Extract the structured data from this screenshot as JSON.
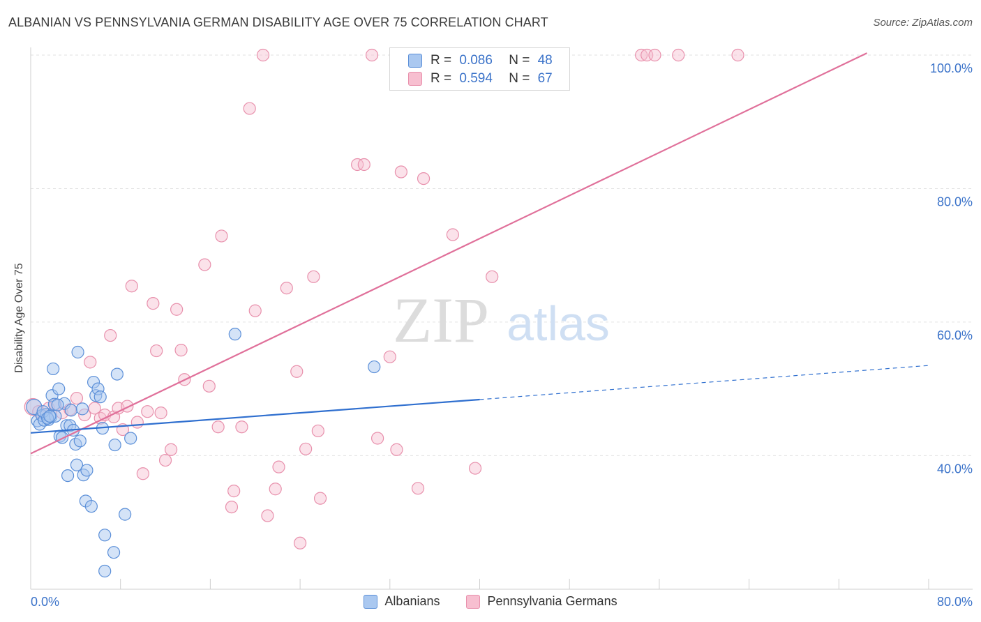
{
  "title": "ALBANIAN VS PENNSYLVANIA GERMAN DISABILITY AGE OVER 75 CORRELATION CHART",
  "source": "Source: ZipAtlas.com",
  "watermark": {
    "zip": "ZIP",
    "atlas": "atlas"
  },
  "colors": {
    "blue_fill": "#aac8f0",
    "blue_stroke": "#5b8fd8",
    "blue_line": "#2f6fcf",
    "pink_fill": "#f7bfd0",
    "pink_stroke": "#e890ac",
    "pink_line": "#e0709a",
    "value_text": "#3a72c9"
  },
  "stats": [
    {
      "r_label": "R =",
      "r_value": "0.086",
      "n_label": "N =",
      "n_value": "48",
      "series": "Albanians"
    },
    {
      "r_label": "R =",
      "r_value": "0.594",
      "n_label": "N =",
      "n_value": "67",
      "series": "Pennsylvania Germans"
    }
  ],
  "legend": [
    "Albanians",
    "Pennsylvania Germans"
  ],
  "chart_data": {
    "type": "scatter",
    "title": "ALBANIAN VS PENNSYLVANIA GERMAN DISABILITY AGE OVER 75 CORRELATION CHART",
    "xlabel": "",
    "ylabel": "Disability Age Over 75",
    "xlim": [
      0,
      80
    ],
    "ylim": [
      20,
      102
    ],
    "x_tick_labels": [
      "0.0%",
      "80.0%"
    ],
    "y_ticks": [
      40,
      60,
      80,
      100
    ],
    "y_tick_labels": [
      "40.0%",
      "60.0%",
      "80.0%",
      "100.0%"
    ],
    "series": [
      {
        "name": "Albanians",
        "points": [
          [
            0.3,
            47.3
          ],
          [
            0.6,
            45.2
          ],
          [
            0.8,
            44.7
          ],
          [
            1.0,
            46.0
          ],
          [
            1.2,
            45.3
          ],
          [
            1.4,
            46.2
          ],
          [
            1.6,
            45.4
          ],
          [
            1.8,
            45.8
          ],
          [
            1.9,
            49.0
          ],
          [
            2.0,
            53.0
          ],
          [
            2.1,
            47.7
          ],
          [
            2.2,
            45.9
          ],
          [
            2.5,
            50.0
          ],
          [
            2.6,
            42.9
          ],
          [
            2.8,
            42.7
          ],
          [
            3.0,
            47.8
          ],
          [
            3.2,
            44.5
          ],
          [
            3.3,
            37.0
          ],
          [
            3.5,
            44.5
          ],
          [
            3.6,
            46.8
          ],
          [
            3.8,
            43.8
          ],
          [
            4.0,
            41.7
          ],
          [
            4.1,
            38.6
          ],
          [
            4.2,
            55.5
          ],
          [
            4.4,
            42.2
          ],
          [
            4.6,
            47.0
          ],
          [
            4.7,
            37.1
          ],
          [
            4.9,
            33.2
          ],
          [
            5.0,
            37.8
          ],
          [
            5.4,
            32.4
          ],
          [
            5.6,
            51.0
          ],
          [
            5.8,
            49.0
          ],
          [
            6.0,
            50.0
          ],
          [
            6.2,
            48.8
          ],
          [
            6.4,
            44.1
          ],
          [
            6.6,
            28.1
          ],
          [
            6.6,
            22.7
          ],
          [
            7.4,
            25.5
          ],
          [
            7.5,
            41.6
          ],
          [
            7.7,
            52.2
          ],
          [
            8.4,
            31.2
          ],
          [
            8.9,
            42.6
          ],
          [
            18.2,
            58.2
          ],
          [
            30.6,
            53.3
          ],
          [
            1.1,
            46.6
          ],
          [
            1.5,
            45.6
          ],
          [
            2.4,
            47.6
          ],
          [
            1.7,
            45.9
          ]
        ],
        "trend": {
          "x": [
            0,
            40
          ],
          "y": [
            43.4,
            48.4
          ]
        },
        "trend_dashed": {
          "x": [
            40,
            80
          ],
          "y": [
            48.4,
            53.5
          ]
        }
      },
      {
        "name": "Pennsylvania Germans",
        "points": [
          [
            0.2,
            47.3
          ],
          [
            0.7,
            46.6
          ],
          [
            1.2,
            46.1
          ],
          [
            1.6,
            47.1
          ],
          [
            2.2,
            47.6
          ],
          [
            2.8,
            46.4
          ],
          [
            3.5,
            46.9
          ],
          [
            4.1,
            48.6
          ],
          [
            4.8,
            46.1
          ],
          [
            5.3,
            54.0
          ],
          [
            5.7,
            47.1
          ],
          [
            6.2,
            45.6
          ],
          [
            6.6,
            46.1
          ],
          [
            7.1,
            58.0
          ],
          [
            7.4,
            45.8
          ],
          [
            7.8,
            47.1
          ],
          [
            8.2,
            43.9
          ],
          [
            8.6,
            47.4
          ],
          [
            9.0,
            65.4
          ],
          [
            9.5,
            45.0
          ],
          [
            10.0,
            37.3
          ],
          [
            10.4,
            46.6
          ],
          [
            10.9,
            62.8
          ],
          [
            11.2,
            55.7
          ],
          [
            11.6,
            46.4
          ],
          [
            12.0,
            39.3
          ],
          [
            12.5,
            40.9
          ],
          [
            13.0,
            61.9
          ],
          [
            13.4,
            55.8
          ],
          [
            13.7,
            51.4
          ],
          [
            15.5,
            68.6
          ],
          [
            15.9,
            50.4
          ],
          [
            16.7,
            44.3
          ],
          [
            17.0,
            72.9
          ],
          [
            17.9,
            32.3
          ],
          [
            18.1,
            34.7
          ],
          [
            18.8,
            44.3
          ],
          [
            19.5,
            92.0
          ],
          [
            20.0,
            61.7
          ],
          [
            20.7,
            100.0
          ],
          [
            21.1,
            31.0
          ],
          [
            21.8,
            35.0
          ],
          [
            22.1,
            38.3
          ],
          [
            22.8,
            65.1
          ],
          [
            23.7,
            52.6
          ],
          [
            24.0,
            26.9
          ],
          [
            24.5,
            41.0
          ],
          [
            25.2,
            66.8
          ],
          [
            25.6,
            43.7
          ],
          [
            25.8,
            33.6
          ],
          [
            29.1,
            83.6
          ],
          [
            29.7,
            83.6
          ],
          [
            30.4,
            100.0
          ],
          [
            30.9,
            42.6
          ],
          [
            32.0,
            54.8
          ],
          [
            32.6,
            40.9
          ],
          [
            33.0,
            82.5
          ],
          [
            34.5,
            35.1
          ],
          [
            35.0,
            81.5
          ],
          [
            37.6,
            73.1
          ],
          [
            39.6,
            38.1
          ],
          [
            41.1,
            66.8
          ],
          [
            54.4,
            100.0
          ],
          [
            54.9,
            100.0
          ],
          [
            55.6,
            100.0
          ],
          [
            57.7,
            100.0
          ],
          [
            63.0,
            100.0
          ]
        ],
        "trend": {
          "x": [
            0,
            74.5
          ],
          "y": [
            40.3,
            100.3
          ]
        }
      }
    ],
    "grid": true,
    "legend_position": "bottom-center"
  }
}
